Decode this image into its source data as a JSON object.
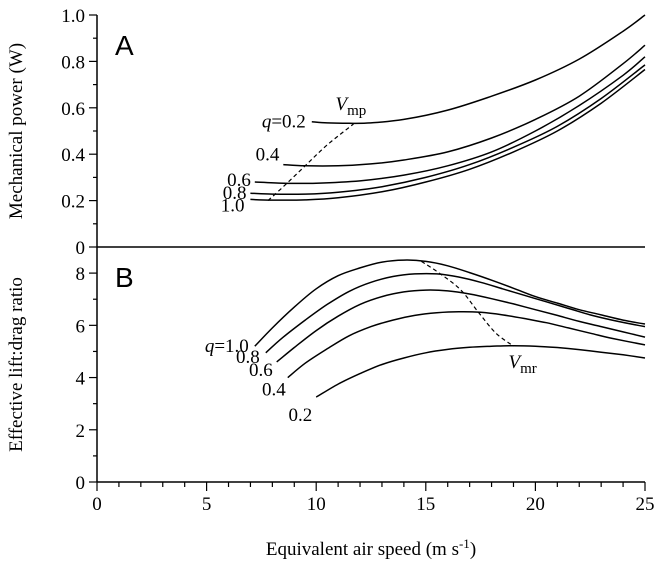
{
  "chart_data": [
    {
      "panel": "A",
      "type": "line",
      "ylabel": "Mechanical power (W)",
      "xlim": [
        0,
        25
      ],
      "ylim": [
        0,
        1.0
      ],
      "yticks": [
        "0",
        "0.2",
        "0.4",
        "0.6",
        "0.8",
        "1.0"
      ],
      "ytick_values": [
        0,
        0.2,
        0.4,
        0.6,
        0.8,
        1.0
      ],
      "series": [
        {
          "name": "q=0.2",
          "x": [
            9.8,
            10.5,
            11.5,
            12.5,
            14,
            16,
            18,
            20,
            22,
            24,
            25
          ],
          "y": [
            0.54,
            0.535,
            0.533,
            0.535,
            0.55,
            0.59,
            0.65,
            0.72,
            0.81,
            0.93,
            1.0
          ]
        },
        {
          "name": "0.4",
          "x": [
            8.5,
            9.5,
            11,
            12.5,
            14,
            16,
            18,
            20,
            22,
            24,
            25
          ],
          "y": [
            0.355,
            0.35,
            0.35,
            0.358,
            0.375,
            0.41,
            0.47,
            0.55,
            0.65,
            0.79,
            0.87
          ]
        },
        {
          "name": "0.6",
          "x": [
            7.2,
            8.5,
            10,
            12,
            14,
            16,
            18,
            20,
            22,
            24,
            25
          ],
          "y": [
            0.28,
            0.275,
            0.275,
            0.285,
            0.31,
            0.35,
            0.41,
            0.5,
            0.61,
            0.74,
            0.82
          ]
        },
        {
          "name": "0.8",
          "x": [
            7.0,
            8,
            9.5,
            11,
            13,
            15,
            17,
            19,
            21,
            23,
            25
          ],
          "y": [
            0.232,
            0.228,
            0.228,
            0.236,
            0.26,
            0.3,
            0.355,
            0.43,
            0.52,
            0.64,
            0.785
          ]
        },
        {
          "name": "1.0",
          "x": [
            7.0,
            8,
            9.5,
            11,
            13,
            15,
            17,
            19,
            21,
            23,
            25
          ],
          "y": [
            0.205,
            0.202,
            0.203,
            0.212,
            0.238,
            0.28,
            0.335,
            0.41,
            0.5,
            0.62,
            0.765
          ]
        }
      ],
      "optimum": {
        "label": "V",
        "subscript": "mp",
        "x": [
          7.8,
          8.5,
          9.5,
          10.5,
          11.7
        ],
        "y": [
          0.2,
          0.26,
          0.35,
          0.44,
          0.53
        ]
      }
    },
    {
      "panel": "B",
      "type": "line",
      "ylabel": "Effective lift:drag ratio",
      "xlabel": "Equivalent air speed (m s",
      "xlabel_sup": "-1",
      "xlabel_end": ")",
      "xlim": [
        0,
        25
      ],
      "ylim": [
        0,
        9
      ],
      "xticks": [
        "0",
        "5",
        "10",
        "15",
        "20",
        "25"
      ],
      "xtick_values": [
        0,
        5,
        10,
        15,
        20,
        25
      ],
      "yticks": [
        "0",
        "2",
        "4",
        "6",
        "8"
      ],
      "ytick_values": [
        0,
        2,
        4,
        6,
        8
      ],
      "series": [
        {
          "name": "q=1.0",
          "x": [
            7.2,
            8,
            9,
            10,
            11,
            12,
            13,
            14,
            15,
            16,
            17,
            18,
            19,
            20,
            21,
            22,
            23,
            24,
            25
          ],
          "y": [
            5.2,
            5.9,
            6.7,
            7.4,
            7.9,
            8.2,
            8.42,
            8.5,
            8.45,
            8.28,
            8.02,
            7.73,
            7.42,
            7.1,
            6.85,
            6.6,
            6.4,
            6.2,
            6.05
          ]
        },
        {
          "name": "0.8",
          "x": [
            7.7,
            8.5,
            9.5,
            10.5,
            11.5,
            12.5,
            13.5,
            14.5,
            15.5,
            16.5,
            17.5,
            18.5,
            19.5,
            20.5,
            21.5,
            22.5,
            23.5,
            25
          ],
          "y": [
            4.95,
            5.55,
            6.2,
            6.8,
            7.3,
            7.65,
            7.87,
            7.97,
            7.97,
            7.85,
            7.65,
            7.4,
            7.15,
            6.9,
            6.65,
            6.4,
            6.2,
            5.95
          ]
        },
        {
          "name": "0.6",
          "x": [
            8.2,
            9,
            10,
            11,
            12,
            13,
            14,
            15,
            16,
            17,
            18,
            19,
            20,
            21,
            22,
            23,
            24,
            25
          ],
          "y": [
            4.6,
            5.15,
            5.8,
            6.35,
            6.8,
            7.1,
            7.28,
            7.35,
            7.32,
            7.2,
            7.02,
            6.82,
            6.6,
            6.38,
            6.15,
            5.95,
            5.75,
            5.55
          ]
        },
        {
          "name": "0.4",
          "x": [
            8.7,
            9.5,
            10.5,
            11.5,
            12.5,
            13.5,
            14.5,
            15.5,
            16.5,
            17.5,
            18.5,
            19.5,
            20.5,
            21.5,
            22.5,
            23.5,
            25
          ],
          "y": [
            4.0,
            4.55,
            5.1,
            5.6,
            5.95,
            6.2,
            6.38,
            6.48,
            6.52,
            6.5,
            6.4,
            6.26,
            6.1,
            5.9,
            5.7,
            5.5,
            5.25
          ]
        },
        {
          "name": "0.2",
          "x": [
            10.0,
            11,
            12,
            13,
            14,
            15,
            16,
            17,
            18,
            19,
            20,
            21,
            22,
            23,
            24,
            25
          ],
          "y": [
            3.25,
            3.75,
            4.15,
            4.5,
            4.75,
            4.95,
            5.08,
            5.16,
            5.2,
            5.22,
            5.2,
            5.15,
            5.07,
            4.97,
            4.87,
            4.75
          ]
        }
      ],
      "optimum": {
        "label": "V",
        "subscript": "mr",
        "x": [
          14.8,
          15.7,
          16.6,
          17.4,
          18.2,
          19.0
        ],
        "y": [
          8.45,
          7.95,
          7.35,
          6.5,
          5.7,
          5.2
        ]
      }
    }
  ]
}
